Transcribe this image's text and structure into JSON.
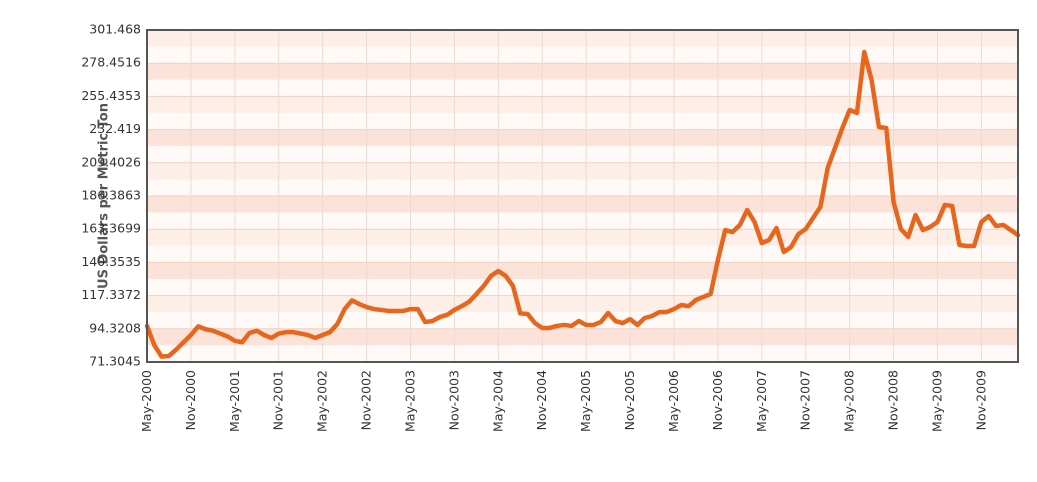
{
  "chart_data": {
    "type": "line",
    "y_label": "US Dollars per Metric Ton",
    "categories": [
      "May-2000",
      null,
      null,
      null,
      null,
      null,
      "Nov-2000",
      null,
      null,
      null,
      null,
      null,
      "May-2001",
      null,
      null,
      null,
      null,
      null,
      "Nov-2001",
      null,
      null,
      null,
      null,
      null,
      "May-2002",
      null,
      null,
      null,
      null,
      null,
      "Nov-2002",
      null,
      null,
      null,
      null,
      null,
      "May-2003",
      null,
      null,
      null,
      null,
      null,
      "Nov-2003",
      null,
      null,
      null,
      null,
      null,
      "May-2004",
      null,
      null,
      null,
      null,
      null,
      "Nov-2004",
      null,
      null,
      null,
      null,
      null,
      "May-2005",
      null,
      null,
      null,
      null,
      null,
      "Nov-2005",
      null,
      null,
      null,
      null,
      null,
      "May-2006",
      null,
      null,
      null,
      null,
      null,
      "Nov-2006",
      null,
      null,
      null,
      null,
      null,
      "May-2007",
      null,
      null,
      null,
      null,
      null,
      "Nov-2007",
      null,
      null,
      null,
      null,
      null,
      "May-2008",
      null,
      null,
      null,
      null,
      null,
      "Nov-2008",
      null,
      null,
      null,
      null,
      null,
      "May-2009",
      null,
      null,
      null,
      null,
      null,
      "Nov-2009",
      null,
      null,
      null,
      null,
      null
    ],
    "series": [
      {
        "color": "#e8661c",
        "values": [
          96.3,
          83,
          75,
          75.5,
          80,
          85,
          90,
          96,
          94,
          93,
          91,
          89,
          86,
          85,
          91.4,
          93,
          90,
          88,
          91,
          92,
          92,
          91,
          90,
          88,
          90,
          92,
          97.6,
          108,
          114,
          111.5,
          109.4,
          108,
          107.4,
          106.7,
          106.7,
          106.7,
          108,
          108,
          99,
          99.7,
          102.5,
          104,
          107.4,
          110,
          113,
          118.4,
          124,
          131,
          134.4,
          131,
          124,
          105,
          104.6,
          98.3,
          94.9,
          94.9,
          96.3,
          97,
          96.3,
          99.7,
          97,
          97,
          99,
          105.3,
          99.7,
          98.3,
          101,
          97,
          101.8,
          103.2,
          105.9,
          105.9,
          108,
          110.8,
          110,
          114.3,
          116.4,
          118.4,
          142,
          162.8,
          161.4,
          166.3,
          176.7,
          168.4,
          153.8,
          155.9,
          164.2,
          147.6,
          151,
          160,
          163.5,
          171.1,
          178.8,
          205.8,
          219.7,
          233.5,
          246,
          244,
          286.2,
          266.8,
          234.2,
          233.5,
          182.2,
          163.5,
          158,
          173.2,
          162.8,
          164.9,
          168.4,
          180.2,
          179.5,
          152.4,
          151.7,
          151.7,
          168.4,
          172.5,
          165.6,
          166.3,
          162.8,
          159.3
        ]
      }
    ],
    "ylim": [
      71.3045,
      301.468
    ],
    "yticks": [
      71.3045,
      94.3208,
      117.3372,
      140.3535,
      163.3699,
      186.3863,
      209.4026,
      232.419,
      255.4353,
      278.4516,
      301.468
    ],
    "grid": true
  }
}
